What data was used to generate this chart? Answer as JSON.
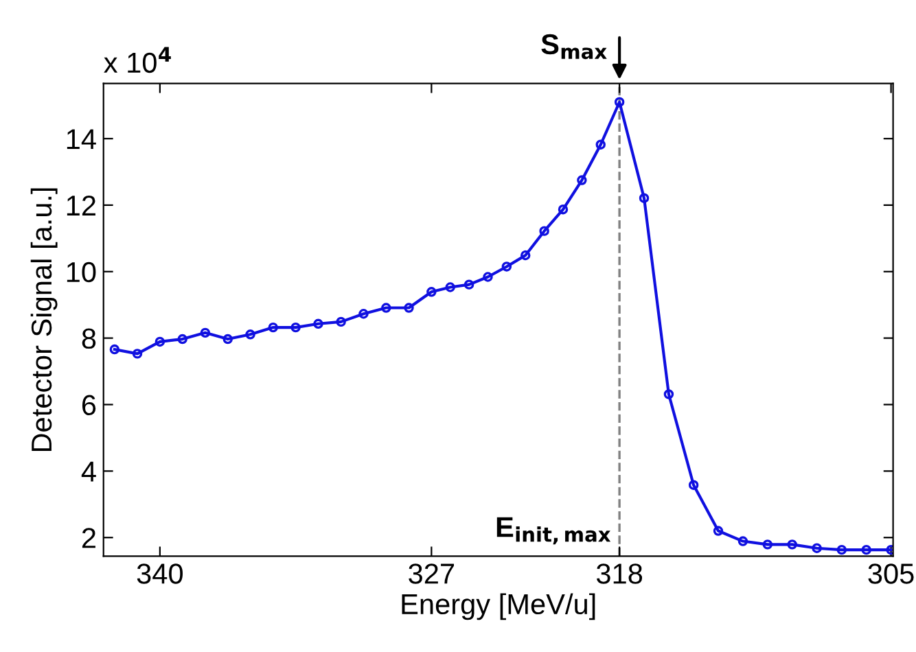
{
  "chart_data": {
    "type": "line",
    "xlabel": "Energy [MeV/u]",
    "ylabel": "Detector Signal [a.u.]",
    "x": [
      342.17,
      341.08,
      340,
      338.92,
      337.83,
      336.75,
      335.67,
      334.58,
      333.5,
      332.42,
      331.33,
      330.25,
      329.17,
      328.08,
      327,
      326.1,
      325.2,
      324.3,
      323.4,
      322.5,
      321.6,
      320.7,
      319.8,
      318.9,
      318,
      316.82,
      315.64,
      314.45,
      313.27,
      312.09,
      310.91,
      309.73,
      308.55,
      307.36,
      306.18,
      305
    ],
    "series": [
      {
        "color": "#1010e0",
        "values": [
          7.66,
          7.53,
          7.89,
          7.97,
          8.16,
          7.97,
          8.11,
          8.32,
          8.32,
          8.43,
          8.49,
          8.73,
          8.91,
          8.91,
          9.39,
          9.53,
          9.61,
          9.84,
          10.15,
          10.49,
          11.22,
          11.87,
          12.75,
          13.82,
          15.1,
          12.21,
          6.31,
          3.58,
          2.2,
          1.89,
          1.79,
          1.79,
          1.68,
          1.63,
          1.63,
          1.63
        ]
      }
    ],
    "xlim": [
      342.7,
      304.9
    ],
    "xticks": [
      340,
      327,
      318,
      305
    ],
    "ylim": [
      1.44,
      15.66
    ],
    "yticks": [
      2,
      4,
      6,
      8,
      10,
      12,
      14
    ],
    "ref_lines": [
      {
        "axis": "x",
        "value": 318,
        "label": "E$_{init,max}$",
        "color": "#808080",
        "line_style": "dashed"
      }
    ],
    "annotations": [
      "x 10$^{4}$",
      {
        "text": "S$_{max}$",
        "x": 318,
        "y": 15.1
      }
    ],
    "marker": "circle",
    "line_style": "solid",
    "grid": false,
    "legend": false
  }
}
